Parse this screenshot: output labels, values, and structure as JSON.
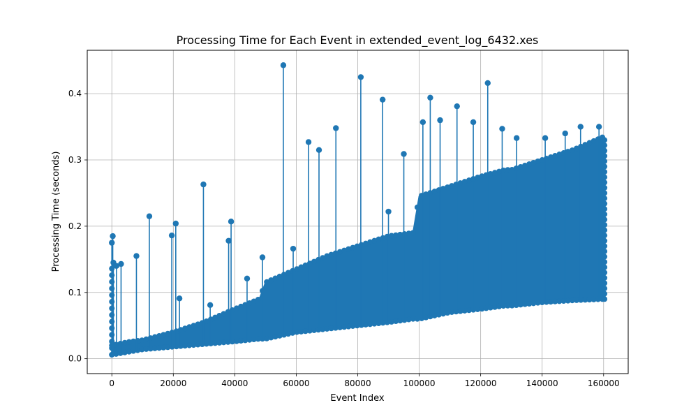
{
  "chart_data": {
    "type": "stem",
    "title": "Processing Time for Each Event in extended_event_log_6432.xes",
    "xlabel": "Event Index",
    "ylabel": "Processing Time (seconds)",
    "xlim": [
      -8000,
      168000
    ],
    "ylim": [
      -0.0225,
      0.4655
    ],
    "grid": true,
    "color": "#1f77b4",
    "x_ticks": [
      0,
      20000,
      40000,
      60000,
      80000,
      100000,
      120000,
      140000,
      160000
    ],
    "y_ticks": [
      0.0,
      0.1,
      0.2,
      0.3,
      0.4
    ],
    "x_tick_labels": [
      "0",
      "20000",
      "40000",
      "60000",
      "80000",
      "100000",
      "120000",
      "140000",
      "160000"
    ],
    "y_tick_labels": [
      "0.0",
      "0.1",
      "0.2",
      "0.3",
      "0.4"
    ],
    "dense_band": {
      "x": [
        0,
        5000,
        10000,
        20000,
        30000,
        40000,
        48000,
        50000,
        60000,
        70000,
        80000,
        90000,
        98000,
        100000,
        110000,
        120000,
        128000,
        130000,
        140000,
        150000,
        160000
      ],
      "lower": [
        0.006,
        0.01,
        0.014,
        0.018,
        0.022,
        0.026,
        0.03,
        0.03,
        0.04,
        0.045,
        0.05,
        0.055,
        0.06,
        0.06,
        0.07,
        0.075,
        0.08,
        0.08,
        0.085,
        0.088,
        0.09
      ],
      "upper": [
        0.02,
        0.025,
        0.028,
        0.04,
        0.055,
        0.075,
        0.09,
        0.115,
        0.135,
        0.155,
        0.17,
        0.185,
        0.19,
        0.245,
        0.26,
        0.275,
        0.285,
        0.285,
        0.3,
        0.315,
        0.335
      ]
    },
    "outliers": [
      {
        "x": 0,
        "y": 0.175
      },
      {
        "x": 300,
        "y": 0.185
      },
      {
        "x": 500,
        "y": 0.145
      },
      {
        "x": 1500,
        "y": 0.14
      },
      {
        "x": 3000,
        "y": 0.143
      },
      {
        "x": 8000,
        "y": 0.155
      },
      {
        "x": 12200,
        "y": 0.215
      },
      {
        "x": 19500,
        "y": 0.186
      },
      {
        "x": 20800,
        "y": 0.204
      },
      {
        "x": 22000,
        "y": 0.091
      },
      {
        "x": 29800,
        "y": 0.263
      },
      {
        "x": 32000,
        "y": 0.081
      },
      {
        "x": 38000,
        "y": 0.178
      },
      {
        "x": 38800,
        "y": 0.207
      },
      {
        "x": 44000,
        "y": 0.121
      },
      {
        "x": 49000,
        "y": 0.153
      },
      {
        "x": 55800,
        "y": 0.443
      },
      {
        "x": 59000,
        "y": 0.166
      },
      {
        "x": 64000,
        "y": 0.327
      },
      {
        "x": 67400,
        "y": 0.315
      },
      {
        "x": 72900,
        "y": 0.348
      },
      {
        "x": 81000,
        "y": 0.425
      },
      {
        "x": 88100,
        "y": 0.391
      },
      {
        "x": 90000,
        "y": 0.222
      },
      {
        "x": 95000,
        "y": 0.309
      },
      {
        "x": 101200,
        "y": 0.357
      },
      {
        "x": 103600,
        "y": 0.394
      },
      {
        "x": 106800,
        "y": 0.36
      },
      {
        "x": 112300,
        "y": 0.381
      },
      {
        "x": 117600,
        "y": 0.357
      },
      {
        "x": 122300,
        "y": 0.416
      },
      {
        "x": 127000,
        "y": 0.347
      },
      {
        "x": 131700,
        "y": 0.333
      },
      {
        "x": 141000,
        "y": 0.333
      },
      {
        "x": 147500,
        "y": 0.34
      },
      {
        "x": 152500,
        "y": 0.35
      },
      {
        "x": 158500,
        "y": 0.35
      }
    ]
  }
}
